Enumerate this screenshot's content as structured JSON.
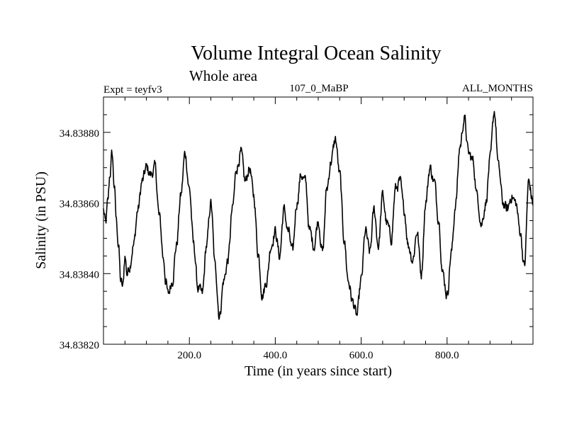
{
  "chart_data": {
    "type": "line",
    "title": "Volume Integral Ocean Salinity",
    "subtitle": "Whole area",
    "expt_label": "Expt = teyfv3",
    "period_label": "107_0_MaBP",
    "months_label": "ALL_MONTHS",
    "xlabel": "Time (in years since start)",
    "ylabel": "Salinity (in PSU)",
    "xlim": [
      0,
      1000
    ],
    "ylim": [
      34.8382,
      34.8389
    ],
    "x_ticks": [
      200,
      400,
      600,
      800
    ],
    "x_tick_labels": [
      "200.0",
      "400.0",
      "600.0",
      "800.0"
    ],
    "y_ticks": [
      34.8382,
      34.8384,
      34.8386,
      34.8388
    ],
    "y_tick_labels": [
      "34.83820",
      "34.83840",
      "34.83860",
      "34.83880"
    ],
    "series": [
      {
        "name": "salinity",
        "x": [
          0,
          5,
          10,
          15,
          20,
          25,
          30,
          35,
          40,
          45,
          50,
          55,
          60,
          70,
          80,
          90,
          100,
          110,
          120,
          130,
          140,
          145,
          150,
          160,
          170,
          180,
          190,
          200,
          210,
          220,
          230,
          240,
          250,
          260,
          270,
          280,
          290,
          300,
          310,
          320,
          330,
          340,
          350,
          360,
          370,
          380,
          390,
          400,
          410,
          420,
          430,
          440,
          450,
          460,
          470,
          480,
          490,
          500,
          510,
          520,
          530,
          540,
          550,
          560,
          570,
          580,
          590,
          600,
          610,
          620,
          630,
          640,
          650,
          660,
          670,
          680,
          690,
          700,
          710,
          720,
          730,
          740,
          750,
          760,
          770,
          780,
          790,
          800,
          810,
          820,
          830,
          840,
          850,
          860,
          870,
          880,
          890,
          900,
          910,
          920,
          930,
          940,
          950,
          960,
          970,
          980,
          990,
          1000
        ],
        "y": [
          34.83858,
          34.83854,
          34.8386,
          34.83868,
          34.83874,
          34.83865,
          34.83855,
          34.83848,
          34.83838,
          34.83836,
          34.83845,
          34.8384,
          34.83842,
          34.83848,
          34.83858,
          34.83866,
          34.8387,
          34.83868,
          34.8387,
          34.83856,
          34.83844,
          34.83838,
          34.83834,
          34.83838,
          34.83848,
          34.83862,
          34.83874,
          34.83864,
          34.83848,
          34.83836,
          34.83834,
          34.83848,
          34.8386,
          34.83842,
          34.83828,
          34.83838,
          34.83844,
          34.83858,
          34.8387,
          34.83874,
          34.83866,
          34.8387,
          34.83862,
          34.83846,
          34.83834,
          34.83838,
          34.83848,
          34.83852,
          34.83845,
          34.83858,
          34.83852,
          34.83846,
          34.8386,
          34.83868,
          34.83866,
          34.83852,
          34.83848,
          34.83855,
          34.83846,
          34.83864,
          34.83872,
          34.83878,
          34.83868,
          34.8385,
          34.83838,
          34.83832,
          34.83828,
          34.83838,
          34.83852,
          34.83846,
          34.83858,
          34.83848,
          34.83862,
          34.83854,
          34.8385,
          34.83864,
          34.83866,
          34.83858,
          34.83848,
          34.83844,
          34.83852,
          34.8384,
          34.8386,
          34.8387,
          34.83866,
          34.83856,
          34.8384,
          34.83834,
          34.83846,
          34.8386,
          34.83876,
          34.83884,
          34.83874,
          34.83872,
          34.83862,
          34.83854,
          34.8386,
          34.83872,
          34.83886,
          34.8387,
          34.8386,
          34.83858,
          34.83862,
          34.8386,
          34.83852,
          34.83842,
          34.83866,
          34.8386
        ]
      }
    ],
    "line_color": "#000000"
  }
}
